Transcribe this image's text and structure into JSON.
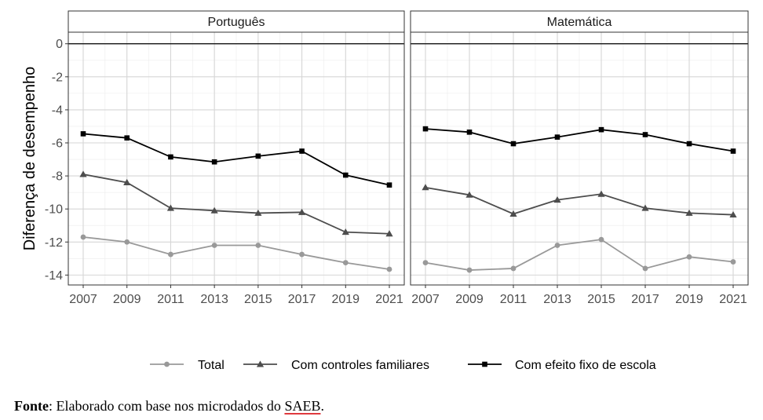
{
  "chart_data": {
    "type": "line",
    "ylabel": "Diferença de desempenho",
    "xlabel": "",
    "x": [
      2007,
      2009,
      2011,
      2013,
      2015,
      2017,
      2019,
      2021
    ],
    "ylim": [
      -14.6,
      0.7
    ],
    "yticks": [
      0,
      -2,
      -4,
      -6,
      -8,
      -10,
      -12,
      -14
    ],
    "grid": true,
    "legend_position": "bottom",
    "reference_line": 0,
    "panels": [
      {
        "title": "Português",
        "series": [
          {
            "name": "Total",
            "values": [
              -11.7,
              -12.0,
              -12.75,
              -12.2,
              -12.2,
              -12.75,
              -13.25,
              -13.65
            ]
          },
          {
            "name": "Com controles familiares",
            "values": [
              -7.9,
              -8.4,
              -9.95,
              -10.1,
              -10.25,
              -10.2,
              -11.4,
              -11.5
            ]
          },
          {
            "name": "Com efeito fixo de escola",
            "values": [
              -5.45,
              -5.7,
              -6.85,
              -7.15,
              -6.8,
              -6.5,
              -7.95,
              -8.55
            ]
          }
        ]
      },
      {
        "title": "Matemática",
        "series": [
          {
            "name": "Total",
            "values": [
              -13.25,
              -13.7,
              -13.6,
              -12.2,
              -11.85,
              -13.6,
              -12.9,
              -13.2
            ]
          },
          {
            "name": "Com controles familiares",
            "values": [
              -8.7,
              -9.15,
              -10.3,
              -9.45,
              -9.1,
              -9.95,
              -10.25,
              -10.35
            ]
          },
          {
            "name": "Com efeito fixo de escola",
            "values": [
              -5.15,
              -5.35,
              -6.05,
              -5.65,
              -5.2,
              -5.5,
              -6.05,
              -6.5
            ]
          }
        ]
      }
    ],
    "series_styles": [
      {
        "name": "Total",
        "color": "#999999",
        "marker": "circle"
      },
      {
        "name": "Com controles familiares",
        "color": "#4d4d4d",
        "marker": "triangle"
      },
      {
        "name": "Com efeito fixo de escola",
        "color": "#000000",
        "marker": "square"
      }
    ]
  },
  "source": {
    "label": "Fonte",
    "text_before": ": Elaborado com base nos microdados do ",
    "link": "SAEB",
    "text_after": "."
  }
}
